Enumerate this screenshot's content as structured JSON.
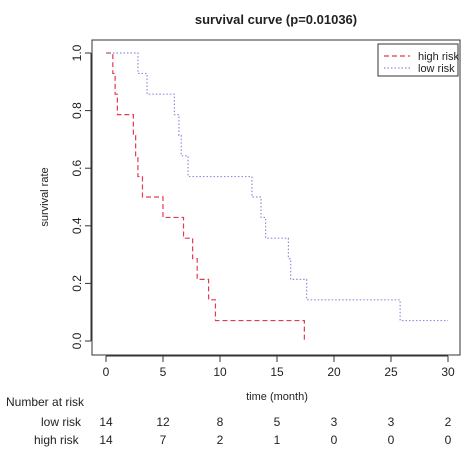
{
  "chart_data": {
    "type": "line",
    "title": "survival curve (p=0.01036)",
    "xlabel": "time (month)",
    "ylabel": "survival rate",
    "xlim": [
      0,
      30
    ],
    "ylim": [
      0,
      1.0
    ],
    "x_ticks": [
      0,
      5,
      10,
      15,
      20,
      25,
      30
    ],
    "y_ticks": [
      0.0,
      0.2,
      0.4,
      0.6,
      0.8,
      1.0
    ],
    "legend_position": "top-right",
    "series": [
      {
        "name": "high risk",
        "color": "#e8384f",
        "dash": "dashed",
        "steps": [
          [
            0,
            1.0
          ],
          [
            0.6,
            0.929
          ],
          [
            0.8,
            0.857
          ],
          [
            1.0,
            0.786
          ],
          [
            2.4,
            0.714
          ],
          [
            2.6,
            0.643
          ],
          [
            2.8,
            0.571
          ],
          [
            3.2,
            0.5
          ],
          [
            5.0,
            0.429
          ],
          [
            6.8,
            0.357
          ],
          [
            7.6,
            0.286
          ],
          [
            8.0,
            0.214
          ],
          [
            9.0,
            0.143
          ],
          [
            9.6,
            0.071
          ],
          [
            17.4,
            0.0
          ]
        ]
      },
      {
        "name": "low risk",
        "color": "#8a8fe0",
        "dash": "dotted",
        "steps": [
          [
            0,
            1.0
          ],
          [
            2.8,
            0.929
          ],
          [
            3.6,
            0.857
          ],
          [
            6.0,
            0.786
          ],
          [
            6.4,
            0.714
          ],
          [
            6.6,
            0.643
          ],
          [
            7.2,
            0.571
          ],
          [
            12.8,
            0.5
          ],
          [
            13.6,
            0.429
          ],
          [
            14.0,
            0.357
          ],
          [
            16.0,
            0.286
          ],
          [
            16.2,
            0.214
          ],
          [
            17.6,
            0.143
          ],
          [
            25.8,
            0.071
          ],
          [
            30.0,
            0.071
          ]
        ]
      }
    ]
  },
  "risk_table": {
    "title": "Number at risk",
    "times": [
      0,
      5,
      10,
      15,
      20,
      25,
      30
    ],
    "rows": [
      {
        "label": "low risk",
        "values": [
          "14",
          "12",
          "8",
          "5",
          "3",
          "3",
          "2"
        ]
      },
      {
        "label": "high risk",
        "values": [
          "14",
          "7",
          "2",
          "1",
          "0",
          "0",
          "0"
        ]
      }
    ]
  }
}
